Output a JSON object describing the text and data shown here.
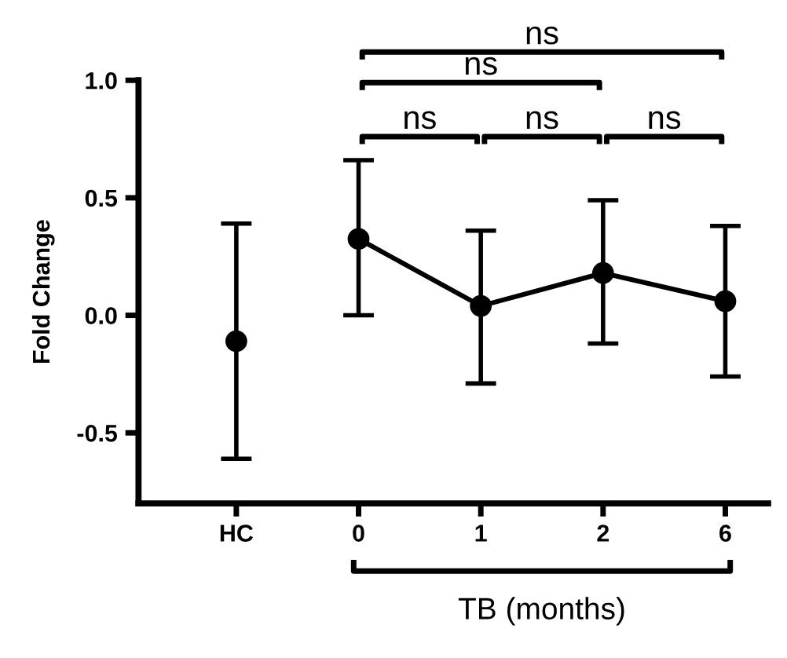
{
  "chart_data": {
    "type": "line",
    "ylabel": "Fold Change",
    "xlabel": "TB (months)",
    "categories": [
      "HC",
      "0",
      "1",
      "2",
      "6"
    ],
    "ylim": [
      -0.8,
      1.0
    ],
    "yticks": [
      {
        "value": -0.5,
        "label": "-0.5"
      },
      {
        "value": 0.0,
        "label": "0.0"
      },
      {
        "value": 0.5,
        "label": "0.5"
      },
      {
        "value": 1.0,
        "label": "1.0"
      }
    ],
    "marker": "circle",
    "grid": false,
    "series": [
      {
        "type": "scatter",
        "color": "#000000",
        "values": [
          -0.11,
          null,
          null,
          null,
          null
        ],
        "errors": [
          [
            -0.61,
            0.39
          ],
          null,
          null,
          null,
          null
        ]
      },
      {
        "color": "#000000",
        "values": [
          null,
          0.325,
          0.04,
          0.18,
          0.06
        ],
        "errors": [
          null,
          [
            0.0,
            0.66
          ],
          [
            -0.29,
            0.36
          ],
          [
            -0.12,
            0.49
          ],
          [
            -0.26,
            0.38
          ]
        ]
      }
    ],
    "annotations": [
      "ns",
      "ns",
      "ns",
      "ns",
      "ns"
    ]
  }
}
